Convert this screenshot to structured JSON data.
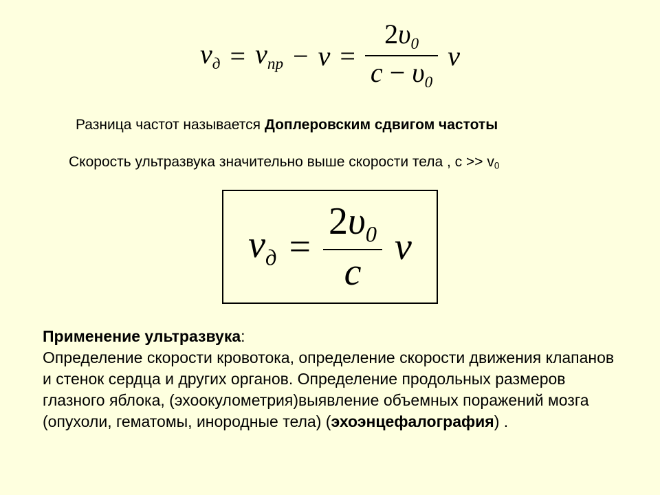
{
  "background_color": "#feffdf",
  "text_color": "#000000",
  "f1": {
    "nu": "ν",
    "sub_d": "д",
    "eq": "=",
    "sub_pr": "пр",
    "minus": "−",
    "two": "2",
    "ups": "υ",
    "sub0": "0",
    "c": "c",
    "fontsize": 40,
    "font_family": "Times New Roman"
  },
  "diff_line": {
    "prefix": "Разница частот  называется ",
    "bold": "Доплеровским сдвигом частоты",
    "fontsize": 21
  },
  "speed_line": {
    "text": "Скорость ультразвука значительно выше скорости тела , c >> v",
    "sub0": "0",
    "fontsize": 21
  },
  "f2": {
    "nu": "ν",
    "sub_d": "д",
    "eq": "=",
    "two": "2",
    "ups": "υ",
    "sub0": "0",
    "c": "c",
    "fontsize": 56,
    "border_width": 2
  },
  "applications": {
    "title": "Применение ультразвука",
    "body1": "Определение скорости кровотока, определение скорости движения клапанов и стенок сердца и других органов. Определение продольных размеров глазного яблока, (эхоокулометрия)выявление объемных поражений мозга (опухоли, гематомы, инородные тела) (",
    "echo": "эхоэнцефалография",
    "tail": ") .",
    "colon": ":",
    "fontsize": 23
  }
}
